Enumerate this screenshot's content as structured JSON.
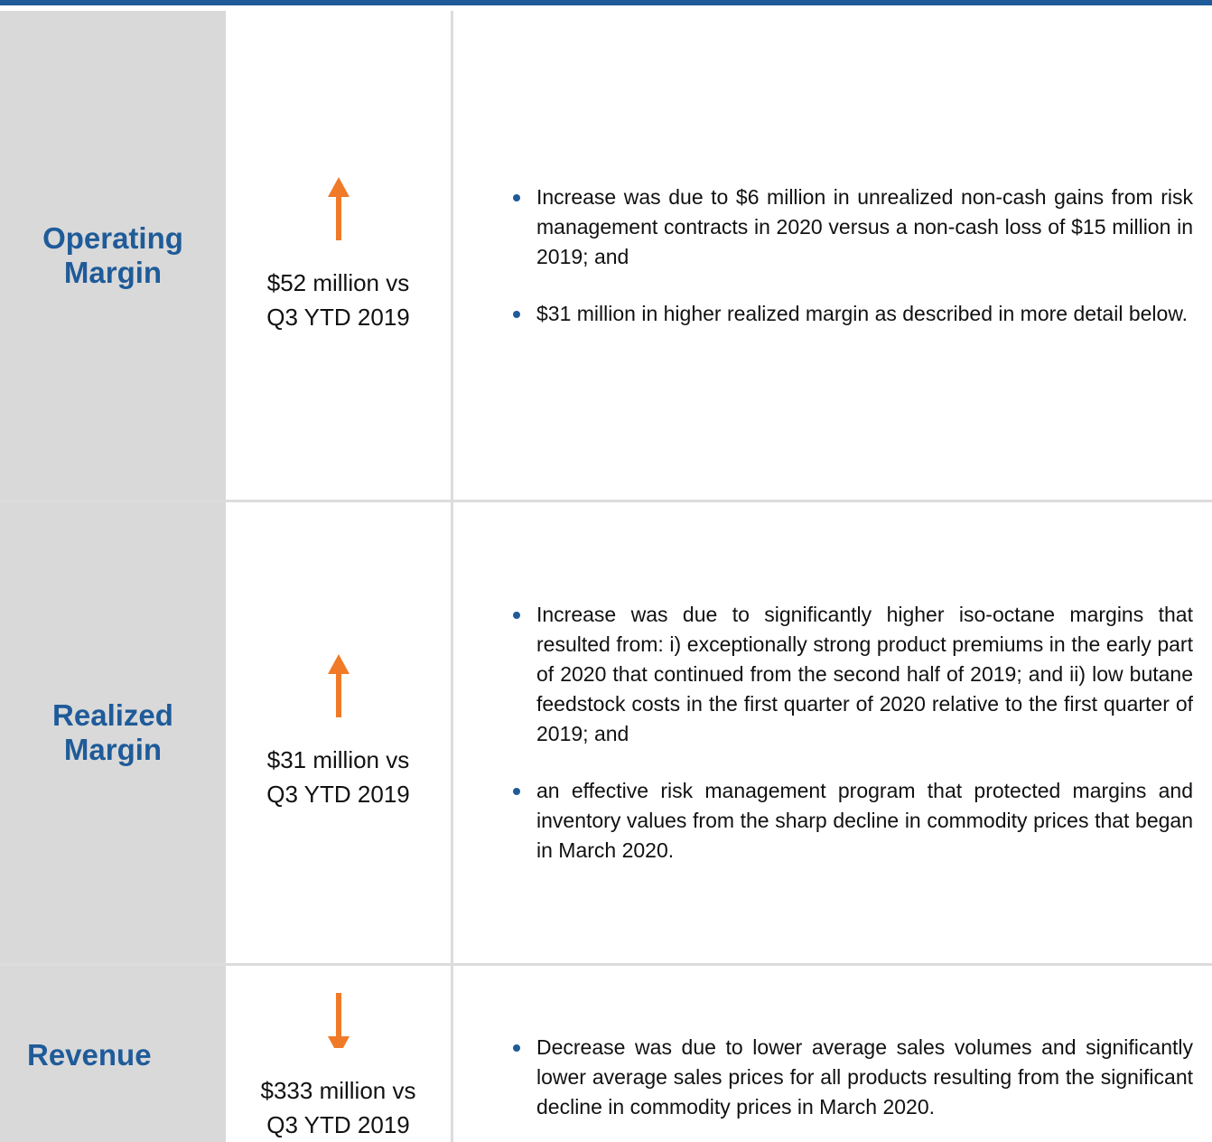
{
  "table": {
    "rows": [
      {
        "label": "Operating Margin",
        "direction": "up",
        "change_lines": [
          "$52 million vs",
          "Q3 YTD 2019"
        ],
        "bullets": [
          "Increase was due to $6 million in unrealized non-cash gains from risk management contracts in 2020 versus a non-cash loss of $15 million in 2019; and",
          "$31 million in higher realized margin as described in more detail below."
        ]
      },
      {
        "label": "Realized Margin",
        "direction": "up",
        "change_lines": [
          "$31 million vs",
          "Q3 YTD 2019"
        ],
        "bullets": [
          "Increase was due to significantly higher iso-octane margins that resulted from: i) exceptionally strong product premiums in the early part of 2020 that continued from the second half of 2019; and ii) low butane feedstock costs in the first quarter of 2020 relative to the first quarter of 2019; and",
          "an effective risk management program that protected margins and inventory values from the sharp decline in commodity prices that began in March 2020."
        ]
      },
      {
        "label": "Revenue",
        "direction": "down",
        "change_lines": [
          "$333 million vs",
          "Q3 YTD 2019"
        ],
        "bullets": [
          "Decrease was due to lower average sales volumes and significantly lower average sales prices for all products resulting from the significant decline in commodity prices in March 2020."
        ]
      }
    ]
  }
}
